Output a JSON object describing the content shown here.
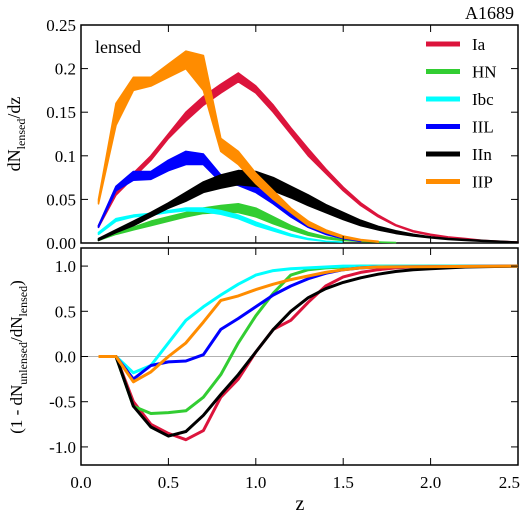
{
  "chart_data": [
    {
      "type": "area",
      "corner_label": "A1689",
      "panel_label": "lensed",
      "ylabel_main": "dN",
      "ylabel_sub": "lensed",
      "ylabel_tail": "/dz",
      "ylim": [
        0,
        0.25
      ],
      "xlim": [
        0,
        2.5
      ],
      "yticks": [
        "0.00",
        "0.05",
        "0.1",
        "0.15",
        "0.2",
        "0.25"
      ],
      "ytick_values": [
        0,
        0.05,
        0.1,
        0.15,
        0.2,
        0.25
      ],
      "legend_placement": "top-right",
      "series": [
        {
          "name": "Ia",
          "color": "#dc143c",
          "x": [
            0.1,
            0.2,
            0.3,
            0.4,
            0.5,
            0.6,
            0.7,
            0.8,
            0.9,
            1.0,
            1.1,
            1.2,
            1.3,
            1.4,
            1.5,
            1.6,
            1.7,
            1.8,
            1.9,
            2.0,
            2.1,
            2.2,
            2.3,
            2.4,
            2.5
          ],
          "lo": [
            0.018,
            0.055,
            0.075,
            0.095,
            0.12,
            0.14,
            0.158,
            0.172,
            0.185,
            0.172,
            0.15,
            0.125,
            0.1,
            0.08,
            0.06,
            0.043,
            0.03,
            0.02,
            0.013,
            0.009,
            0.006,
            0.004,
            0.003,
            0.002,
            0.001
          ],
          "hi": [
            0.02,
            0.06,
            0.08,
            0.1,
            0.125,
            0.15,
            0.168,
            0.182,
            0.195,
            0.18,
            0.158,
            0.132,
            0.108,
            0.085,
            0.064,
            0.046,
            0.032,
            0.021,
            0.014,
            0.01,
            0.007,
            0.005,
            0.003,
            0.002,
            0.001
          ]
        },
        {
          "name": "HN",
          "color": "#32cd32",
          "x": [
            0.1,
            0.2,
            0.3,
            0.4,
            0.5,
            0.6,
            0.7,
            0.8,
            0.9,
            1.0,
            1.1,
            1.2,
            1.3,
            1.4,
            1.5,
            1.6,
            1.7,
            1.8
          ],
          "lo": [
            0.003,
            0.01,
            0.015,
            0.02,
            0.025,
            0.03,
            0.034,
            0.035,
            0.035,
            0.03,
            0.022,
            0.015,
            0.009,
            0.005,
            0.003,
            0.002,
            0.001,
            0.0005
          ],
          "hi": [
            0.004,
            0.012,
            0.018,
            0.025,
            0.03,
            0.035,
            0.04,
            0.043,
            0.045,
            0.04,
            0.03,
            0.02,
            0.012,
            0.007,
            0.004,
            0.002,
            0.001,
            0.0005
          ]
        },
        {
          "name": "Ibc",
          "color": "#00ffff",
          "x": [
            0.1,
            0.2,
            0.3,
            0.4,
            0.5,
            0.6,
            0.7,
            0.8,
            0.9,
            1.0,
            1.1,
            1.2,
            1.3,
            1.4,
            1.5
          ],
          "lo": [
            0.01,
            0.025,
            0.03,
            0.032,
            0.035,
            0.037,
            0.036,
            0.033,
            0.028,
            0.02,
            0.014,
            0.008,
            0.004,
            0.002,
            0.001
          ],
          "hi": [
            0.012,
            0.028,
            0.032,
            0.034,
            0.037,
            0.04,
            0.04,
            0.037,
            0.032,
            0.024,
            0.017,
            0.01,
            0.005,
            0.002,
            0.001
          ]
        },
        {
          "name": "IIL",
          "color": "#0000ff",
          "x": [
            0.1,
            0.2,
            0.3,
            0.4,
            0.5,
            0.6,
            0.7,
            0.8,
            0.9,
            1.0,
            1.1,
            1.2,
            1.3,
            1.4,
            1.5,
            1.6
          ],
          "lo": [
            0.018,
            0.06,
            0.072,
            0.073,
            0.083,
            0.09,
            0.09,
            0.07,
            0.066,
            0.058,
            0.045,
            0.03,
            0.018,
            0.01,
            0.005,
            0.002
          ],
          "hi": [
            0.02,
            0.065,
            0.082,
            0.082,
            0.095,
            0.105,
            0.102,
            0.078,
            0.072,
            0.065,
            0.05,
            0.034,
            0.021,
            0.012,
            0.006,
            0.003
          ]
        },
        {
          "name": "IIn",
          "color": "#000000",
          "x": [
            0.1,
            0.2,
            0.3,
            0.4,
            0.5,
            0.6,
            0.7,
            0.8,
            0.9,
            1.0,
            1.1,
            1.2,
            1.3,
            1.4,
            1.5,
            1.6,
            1.7,
            1.8,
            1.9,
            2.0,
            2.1,
            2.2,
            2.3,
            2.4,
            2.5
          ],
          "lo": [
            0.003,
            0.012,
            0.02,
            0.03,
            0.04,
            0.048,
            0.058,
            0.063,
            0.067,
            0.065,
            0.06,
            0.052,
            0.043,
            0.035,
            0.027,
            0.02,
            0.015,
            0.011,
            0.008,
            0.006,
            0.004,
            0.003,
            0.002,
            0.0015,
            0.001
          ],
          "hi": [
            0.005,
            0.015,
            0.025,
            0.035,
            0.046,
            0.058,
            0.07,
            0.078,
            0.083,
            0.082,
            0.075,
            0.065,
            0.055,
            0.044,
            0.035,
            0.026,
            0.019,
            0.014,
            0.01,
            0.007,
            0.005,
            0.004,
            0.003,
            0.002,
            0.001
          ]
        },
        {
          "name": "IIP",
          "color": "#ff8c00",
          "x": [
            0.1,
            0.2,
            0.3,
            0.4,
            0.5,
            0.6,
            0.7,
            0.8,
            0.9,
            1.0,
            1.1,
            1.2,
            1.3,
            1.4,
            1.5,
            1.6,
            1.7
          ],
          "lo": [
            0.045,
            0.135,
            0.175,
            0.18,
            0.19,
            0.2,
            0.175,
            0.105,
            0.09,
            0.068,
            0.05,
            0.035,
            0.02,
            0.012,
            0.006,
            0.003,
            0.001
          ],
          "hi": [
            0.05,
            0.16,
            0.19,
            0.19,
            0.205,
            0.22,
            0.215,
            0.12,
            0.105,
            0.08,
            0.06,
            0.04,
            0.025,
            0.015,
            0.008,
            0.004,
            0.002
          ]
        }
      ]
    },
    {
      "type": "line",
      "ylabel_a": "(1 - dN",
      "ylabel_sub1": "unlensed",
      "ylabel_b": "/dN",
      "ylabel_sub2": "lensed",
      "ylabel_c": ")",
      "xlabel": "z",
      "xlim": [
        0,
        2.5
      ],
      "ylim": [
        -1.2,
        1.2
      ],
      "xticks": [
        "0.0",
        "0.5",
        "1.0",
        "1.5",
        "2.0",
        "2.5"
      ],
      "xtick_values": [
        0,
        0.5,
        1.0,
        1.5,
        2.0,
        2.5
      ],
      "yticks": [
        "-1.0",
        "-0.5",
        "0.0",
        "0.5",
        "1.0"
      ],
      "ytick_values": [
        -1.0,
        -0.5,
        0.0,
        0.5,
        1.0
      ],
      "zero_line": true,
      "series": [
        {
          "name": "Ia",
          "color": "#dc143c",
          "x": [
            0.1,
            0.2,
            0.3,
            0.4,
            0.5,
            0.6,
            0.7,
            0.8,
            0.9,
            1.0,
            1.1,
            1.2,
            1.3,
            1.4,
            1.5,
            1.6,
            1.7,
            1.8,
            1.9,
            2.0,
            2.5
          ],
          "y": [
            0,
            0,
            -0.5,
            -0.75,
            -0.85,
            -0.92,
            -0.82,
            -0.45,
            -0.25,
            0.05,
            0.3,
            0.4,
            0.6,
            0.78,
            0.88,
            0.93,
            0.96,
            0.98,
            0.99,
            1.0,
            1.0
          ]
        },
        {
          "name": "HN",
          "color": "#32cd32",
          "x": [
            0.1,
            0.2,
            0.3,
            0.4,
            0.5,
            0.6,
            0.7,
            0.8,
            0.9,
            1.0,
            1.1,
            1.2,
            1.3,
            1.4,
            1.5,
            1.6,
            2.5
          ],
          "y": [
            0,
            0,
            -0.55,
            -0.63,
            -0.62,
            -0.6,
            -0.45,
            -0.2,
            0.15,
            0.45,
            0.7,
            0.9,
            0.96,
            0.98,
            0.99,
            1.0,
            1.0
          ]
        },
        {
          "name": "Ibc",
          "color": "#00ffff",
          "x": [
            0.1,
            0.2,
            0.3,
            0.4,
            0.5,
            0.6,
            0.7,
            0.8,
            0.9,
            1.0,
            1.1,
            1.2,
            1.3,
            1.4,
            1.5,
            2.5
          ],
          "y": [
            0,
            0,
            -0.18,
            -0.1,
            0.15,
            0.4,
            0.55,
            0.68,
            0.8,
            0.9,
            0.95,
            0.97,
            0.98,
            0.99,
            1.0,
            1.0
          ]
        },
        {
          "name": "IIL",
          "color": "#0000ff",
          "x": [
            0.1,
            0.2,
            0.3,
            0.4,
            0.5,
            0.6,
            0.7,
            0.8,
            0.9,
            1.0,
            1.1,
            1.2,
            1.3,
            1.4,
            1.5,
            1.6,
            1.7,
            2.5
          ],
          "y": [
            0,
            0,
            -0.25,
            -0.1,
            -0.06,
            -0.05,
            0.02,
            0.3,
            0.42,
            0.55,
            0.68,
            0.78,
            0.86,
            0.92,
            0.96,
            0.98,
            0.99,
            1.0
          ]
        },
        {
          "name": "IIn",
          "color": "#000000",
          "x": [
            0.1,
            0.2,
            0.3,
            0.4,
            0.5,
            0.6,
            0.7,
            0.8,
            0.9,
            1.0,
            1.1,
            1.2,
            1.3,
            1.4,
            1.5,
            1.6,
            1.7,
            1.8,
            1.9,
            2.0,
            2.1,
            2.2,
            2.5
          ],
          "y": [
            0,
            0,
            -0.55,
            -0.78,
            -0.88,
            -0.83,
            -0.65,
            -0.42,
            -0.2,
            0.05,
            0.3,
            0.5,
            0.65,
            0.75,
            0.82,
            0.87,
            0.91,
            0.94,
            0.96,
            0.97,
            0.98,
            0.99,
            1.0
          ]
        },
        {
          "name": "IIP",
          "color": "#ff8c00",
          "x": [
            0.1,
            0.2,
            0.3,
            0.4,
            0.5,
            0.6,
            0.7,
            0.8,
            0.9,
            1.0,
            1.1,
            1.2,
            1.3,
            1.4,
            1.5,
            1.6,
            1.7,
            2.5
          ],
          "y": [
            0,
            0,
            -0.28,
            -0.17,
            0.0,
            0.15,
            0.38,
            0.62,
            0.67,
            0.74,
            0.8,
            0.85,
            0.89,
            0.93,
            0.96,
            0.98,
            0.99,
            1.0
          ]
        }
      ]
    }
  ]
}
